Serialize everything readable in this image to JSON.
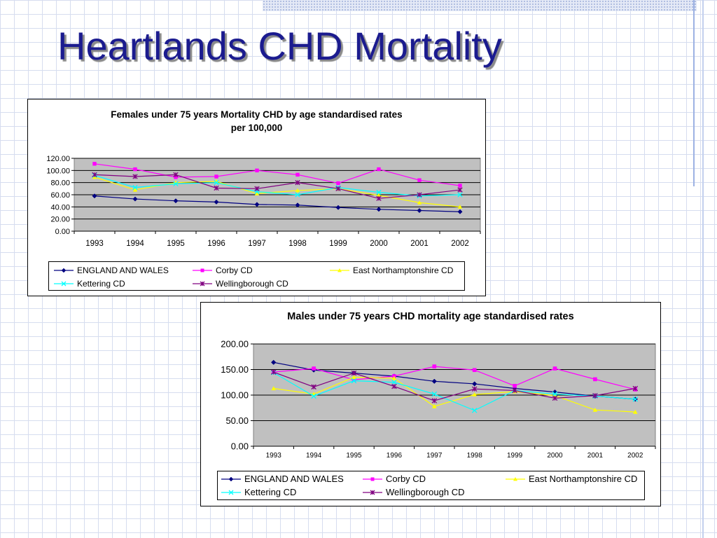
{
  "slide": {
    "title": "Heartlands CHD Mortality"
  },
  "chart_data": [
    {
      "type": "line",
      "title_lines": [
        "Females under  75 years  Mortality CHD by age standardised rates",
        "per 100,000"
      ],
      "xlabel": "",
      "ylabel": "",
      "categories": [
        "1993",
        "1994",
        "1995",
        "1996",
        "1997",
        "1998",
        "1999",
        "2000",
        "2001",
        "2002"
      ],
      "ylim": [
        0,
        120
      ],
      "yticks": [
        0,
        20,
        40,
        60,
        80,
        100,
        120
      ],
      "ytick_labels": [
        "0.00",
        "20.00",
        "40.00",
        "60.00",
        "80.00",
        "100.00",
        "120.00"
      ],
      "grid": true,
      "plot_background": "#c0c0c0",
      "legend_position": "bottom",
      "series": [
        {
          "name": "ENGLAND AND WALES",
          "color": "#000080",
          "marker": "diamond",
          "values": [
            58,
            53,
            50,
            48,
            44,
            43,
            39,
            36,
            34,
            32
          ]
        },
        {
          "name": "Corby CD",
          "color": "#ff00ff",
          "marker": "square",
          "values": [
            111,
            102,
            89,
            90,
            100,
            93,
            79,
            102,
            84,
            75
          ]
        },
        {
          "name": "East Northamptonshire CD",
          "color": "#ffff00",
          "marker": "triangle",
          "values": [
            89,
            68,
            80,
            82,
            62,
            67,
            70,
            59,
            47,
            40
          ]
        },
        {
          "name": "Kettering CD",
          "color": "#00ffff",
          "marker": "x",
          "values": [
            92,
            72,
            78,
            80,
            65,
            60,
            72,
            64,
            58,
            60
          ]
        },
        {
          "name": "Wellingborough CD",
          "color": "#800080",
          "marker": "star",
          "values": [
            93,
            90,
            93,
            71,
            70,
            80,
            70,
            54,
            60,
            68
          ]
        }
      ]
    },
    {
      "type": "line",
      "title_lines": [
        "Males under 75 years CHD mortality age standardised rates"
      ],
      "xlabel": "",
      "ylabel": "",
      "categories": [
        "1993",
        "1994",
        "1995",
        "1996",
        "1997",
        "1998",
        "1999",
        "2000",
        "2001",
        "2002"
      ],
      "ylim": [
        0,
        200
      ],
      "yticks": [
        0,
        50,
        100,
        150,
        200
      ],
      "ytick_labels": [
        "0.00",
        "50.00",
        "100.00",
        "150.00",
        "200.00"
      ],
      "grid": true,
      "plot_background": "#c0c0c0",
      "legend_position": "bottom",
      "series": [
        {
          "name": "ENGLAND AND WALES",
          "color": "#000080",
          "marker": "diamond",
          "values": [
            164,
            149,
            143,
            137,
            127,
            122,
            113,
            106,
            98,
            92
          ]
        },
        {
          "name": "Corby  CD",
          "color": "#ff00ff",
          "marker": "square",
          "values": [
            145,
            152,
            130,
            137,
            156,
            149,
            118,
            152,
            131,
            111
          ]
        },
        {
          "name": "East Northamptonshire CD",
          "color": "#ffff00",
          "marker": "triangle",
          "values": [
            113,
            102,
            135,
            133,
            78,
            101,
            107,
            99,
            71,
            67
          ]
        },
        {
          "name": "Kettering CD",
          "color": "#00ffff",
          "marker": "x",
          "values": [
            144,
            98,
            128,
            125,
            102,
            70,
            109,
            102,
            98,
            92
          ]
        },
        {
          "name": "Wellingborough CD",
          "color": "#800080",
          "marker": "star",
          "values": [
            145,
            116,
            143,
            117,
            89,
            112,
            109,
            94,
            99,
            113
          ]
        }
      ]
    }
  ]
}
